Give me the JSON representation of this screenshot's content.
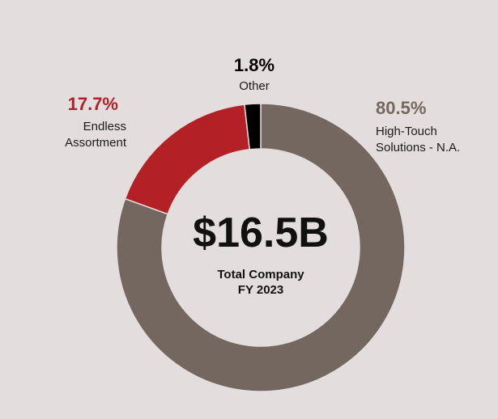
{
  "chart_data": {
    "type": "pie",
    "variant": "donut",
    "title": "$16.5B",
    "subtitle_lines": [
      "Total Company",
      "FY 2023"
    ],
    "slices": [
      {
        "label_lines": [
          "High-Touch",
          "Solutions - N.A."
        ],
        "value": 80.5,
        "display": "80.5%",
        "color": "#74675f"
      },
      {
        "label_lines": [
          "Endless",
          "Assortment"
        ],
        "value": 17.7,
        "display": "17.7%",
        "color": "#b32025"
      },
      {
        "label_lines": [
          "Other"
        ],
        "value": 1.8,
        "display": "1.8%",
        "color": "#000000"
      }
    ]
  },
  "colors": {
    "background": "#e3dedd",
    "center_fill": "#e3dedd"
  }
}
